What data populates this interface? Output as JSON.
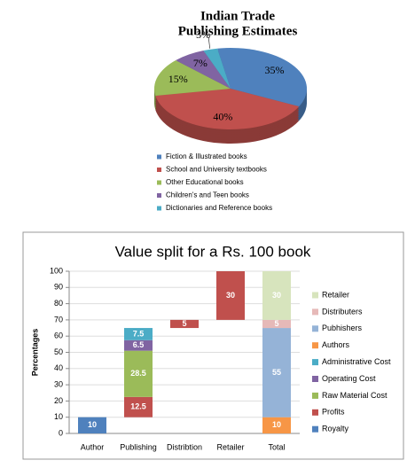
{
  "chart_data": [
    {
      "type": "pie",
      "title": [
        "Indian Trade",
        "Publishing Estimates"
      ],
      "categories": [
        "Fiction & Illustrated books",
        "School and University textbooks",
        "Other Educational books",
        "Children's and Teen books",
        "Dictionaries and Reference books"
      ],
      "values": [
        35,
        40,
        15,
        7,
        3
      ],
      "value_labels": [
        "35%",
        "40%",
        "15%",
        "7%",
        "3%"
      ],
      "colors": [
        "#4f81bd",
        "#c0504d",
        "#9bbb59",
        "#8064a2",
        "#4bacc6"
      ]
    },
    {
      "type": "waterfall",
      "title": "Value split for a Rs. 100 book",
      "y_label": "Percentages",
      "categories": [
        "Author",
        "Publishing",
        "Distribtion",
        "Retailer",
        "Total"
      ],
      "ylim": [
        0,
        100
      ],
      "yticks": [
        0,
        10,
        20,
        30,
        40,
        50,
        60,
        70,
        80,
        90,
        100
      ],
      "grid": true,
      "series": [
        {
          "name": "Royalty",
          "color": "#4f81bd",
          "values": [
            10,
            null,
            null,
            null,
            null
          ]
        },
        {
          "name": "Profits",
          "color": "#c0504d",
          "values": [
            null,
            12.5,
            5,
            30,
            null
          ]
        },
        {
          "name": "Raw Material Cost",
          "color": "#9bbb59",
          "values": [
            null,
            28.5,
            null,
            null,
            null
          ]
        },
        {
          "name": "Operating Cost",
          "color": "#8064a2",
          "values": [
            null,
            6.5,
            null,
            null,
            null
          ]
        },
        {
          "name": "Administrative Cost",
          "color": "#4bacc6",
          "values": [
            null,
            7.5,
            null,
            null,
            null
          ]
        },
        {
          "name": "Authors",
          "color": "#f79646",
          "values": [
            null,
            null,
            null,
            null,
            10
          ]
        },
        {
          "name": "Pubhishers",
          "color": "#95b3d7",
          "values": [
            null,
            null,
            null,
            null,
            55
          ]
        },
        {
          "name": "Distributers",
          "color": "#e6b9b8",
          "values": [
            null,
            null,
            null,
            null,
            5
          ]
        },
        {
          "name": "Retailer",
          "color": "#d7e4bd",
          "values": [
            null,
            null,
            null,
            null,
            30
          ]
        }
      ]
    }
  ]
}
